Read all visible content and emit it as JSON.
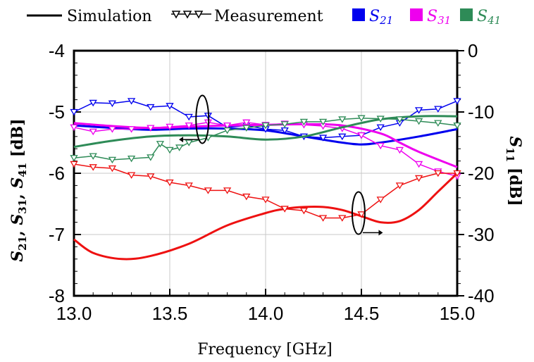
{
  "chart_data": {
    "type": "line",
    "title": "",
    "xlabel": "Frequency [GHz]",
    "ylabel_left": "S21, S31, S41 [dB]",
    "ylabel_right": "S11 [dB]",
    "xlim": [
      13.0,
      15.0
    ],
    "ylim_left": [
      -8,
      -4
    ],
    "ylim_right": [
      -40,
      0
    ],
    "x_ticks": [
      "13.0",
      "13.5",
      "14.0",
      "14.5",
      "15.0"
    ],
    "y_ticks_left": [
      "-4",
      "-5",
      "-6",
      "-7",
      "-8"
    ],
    "y_ticks_right": [
      "0",
      "-10",
      "-20",
      "-30",
      "-40"
    ],
    "grid": true,
    "legend": {
      "position": "top",
      "simulation_label": "Simulation",
      "measurement_label": "Measurement",
      "series_labels": [
        "S21",
        "S31",
        "S41"
      ]
    },
    "colors": {
      "S21": "#0000ee",
      "S31": "#ee00ee",
      "S41": "#2e8b57",
      "S11": "#ee1111"
    },
    "series": [
      {
        "name": "S21",
        "axis": "left",
        "kind": "simulation",
        "x": [
          13.0,
          13.2,
          13.4,
          13.6,
          13.8,
          14.0,
          14.2,
          14.4,
          14.5,
          14.6,
          14.8,
          15.0
        ],
        "values": [
          -5.22,
          -5.26,
          -5.29,
          -5.27,
          -5.27,
          -5.3,
          -5.4,
          -5.5,
          -5.53,
          -5.5,
          -5.4,
          -5.28
        ]
      },
      {
        "name": "S21",
        "axis": "left",
        "kind": "measurement",
        "x": [
          13.0,
          13.1,
          13.2,
          13.3,
          13.4,
          13.5,
          13.6,
          13.7,
          13.8,
          13.9,
          14.0,
          14.1,
          14.2,
          14.3,
          14.4,
          14.5,
          14.6,
          14.7,
          14.8,
          14.9,
          15.0
        ],
        "values": [
          -5.0,
          -4.85,
          -4.86,
          -4.82,
          -4.92,
          -4.9,
          -5.08,
          -5.06,
          -5.25,
          -5.22,
          -5.28,
          -5.3,
          -5.4,
          -5.42,
          -5.4,
          -5.38,
          -5.25,
          -5.18,
          -4.97,
          -4.95,
          -4.82
        ]
      },
      {
        "name": "S31",
        "axis": "left",
        "kind": "simulation",
        "x": [
          13.0,
          13.2,
          13.4,
          13.6,
          13.8,
          14.0,
          14.2,
          14.4,
          14.6,
          14.7,
          14.8,
          15.0
        ],
        "values": [
          -5.18,
          -5.23,
          -5.26,
          -5.24,
          -5.22,
          -5.21,
          -5.2,
          -5.22,
          -5.35,
          -5.5,
          -5.65,
          -5.9
        ]
      },
      {
        "name": "S31",
        "axis": "left",
        "kind": "measurement",
        "x": [
          13.0,
          13.1,
          13.2,
          13.3,
          13.4,
          13.5,
          13.6,
          13.7,
          13.8,
          13.9,
          14.0,
          14.1,
          14.2,
          14.3,
          14.4,
          14.5,
          14.6,
          14.7,
          14.8,
          14.9,
          15.0
        ],
        "values": [
          -5.25,
          -5.32,
          -5.28,
          -5.28,
          -5.26,
          -5.24,
          -5.22,
          -5.17,
          -5.22,
          -5.17,
          -5.21,
          -5.19,
          -5.21,
          -5.23,
          -5.27,
          -5.38,
          -5.55,
          -5.62,
          -5.85,
          -5.97,
          -6.05
        ]
      },
      {
        "name": "S41",
        "axis": "left",
        "kind": "simulation",
        "x": [
          13.0,
          13.2,
          13.4,
          13.6,
          13.8,
          14.0,
          14.2,
          14.4,
          14.6,
          14.8,
          15.0
        ],
        "values": [
          -5.57,
          -5.47,
          -5.4,
          -5.38,
          -5.4,
          -5.45,
          -5.4,
          -5.25,
          -5.12,
          -5.07,
          -5.07
        ]
      },
      {
        "name": "S41",
        "axis": "left",
        "kind": "measurement",
        "x": [
          13.0,
          13.1,
          13.2,
          13.3,
          13.4,
          13.45,
          13.5,
          13.55,
          13.6,
          13.7,
          13.8,
          13.9,
          14.0,
          14.1,
          14.2,
          14.3,
          14.4,
          14.5,
          14.6,
          14.7,
          14.8,
          14.9,
          15.0
        ],
        "values": [
          -5.75,
          -5.72,
          -5.78,
          -5.76,
          -5.74,
          -5.52,
          -5.62,
          -5.58,
          -5.5,
          -5.42,
          -5.3,
          -5.26,
          -5.22,
          -5.2,
          -5.16,
          -5.16,
          -5.12,
          -5.1,
          -5.11,
          -5.12,
          -5.15,
          -5.18,
          -5.22
        ]
      },
      {
        "name": "S11",
        "axis": "right",
        "kind": "simulation",
        "x": [
          13.0,
          13.1,
          13.25,
          13.4,
          13.6,
          13.8,
          14.0,
          14.1,
          14.2,
          14.3,
          14.4,
          14.5,
          14.6,
          14.7,
          14.8,
          14.9,
          15.0
        ],
        "values": [
          -30.8,
          -33.0,
          -34.0,
          -33.5,
          -31.5,
          -28.5,
          -26.5,
          -25.8,
          -25.5,
          -25.5,
          -26.0,
          -27.0,
          -28.0,
          -27.8,
          -26.0,
          -23.0,
          -20.0
        ]
      },
      {
        "name": "S11",
        "axis": "right",
        "kind": "measurement",
        "x": [
          13.0,
          13.1,
          13.2,
          13.3,
          13.4,
          13.5,
          13.6,
          13.7,
          13.8,
          13.9,
          14.0,
          14.1,
          14.2,
          14.3,
          14.4,
          14.5,
          14.6,
          14.7,
          14.8,
          14.9,
          15.0
        ],
        "values": [
          -18.5,
          -19.0,
          -19.2,
          -20.3,
          -20.5,
          -21.5,
          -22.0,
          -22.8,
          -22.8,
          -23.8,
          -24.3,
          -25.8,
          -26.1,
          -27.3,
          -27.3,
          -26.7,
          -24.3,
          -22.0,
          -20.8,
          -20.0,
          -20.0
        ]
      }
    ]
  }
}
